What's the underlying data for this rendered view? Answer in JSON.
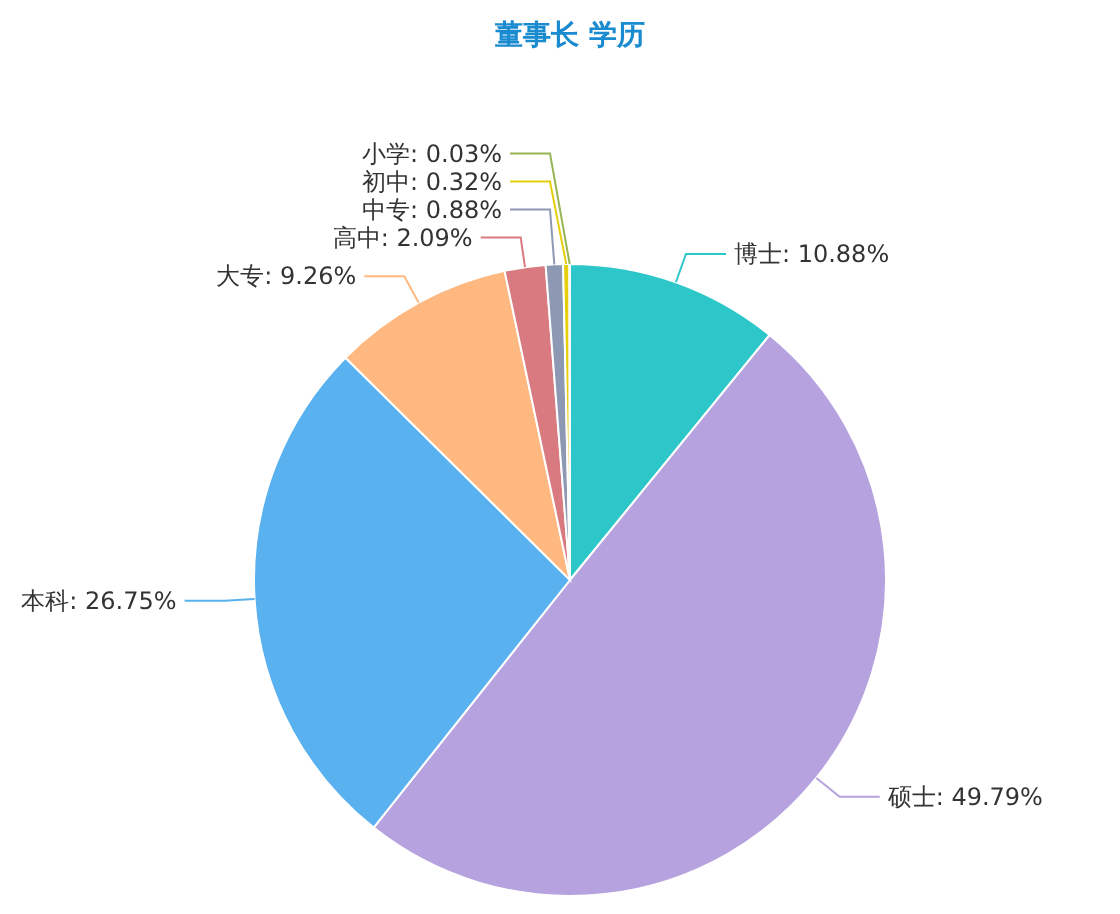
{
  "chart_data": {
    "type": "pie",
    "title": "董事长 学历",
    "categories": [
      "博士",
      "硕士",
      "本科",
      "大专",
      "高中",
      "中专",
      "初中",
      "小学"
    ],
    "values": [
      10.88,
      49.79,
      26.75,
      9.26,
      2.09,
      0.88,
      0.32,
      0.03
    ],
    "value_labels": [
      "10.88%",
      "49.79%",
      "26.75%",
      "9.26%",
      "2.09%",
      "0.88%",
      "0.32%",
      "0.03%"
    ],
    "colors": [
      "#2ec7c9",
      "#b6a2de",
      "#5ab1ef",
      "#ffb980",
      "#d87a80",
      "#8d98b3",
      "#e5cf0d",
      "#97b552"
    ]
  }
}
